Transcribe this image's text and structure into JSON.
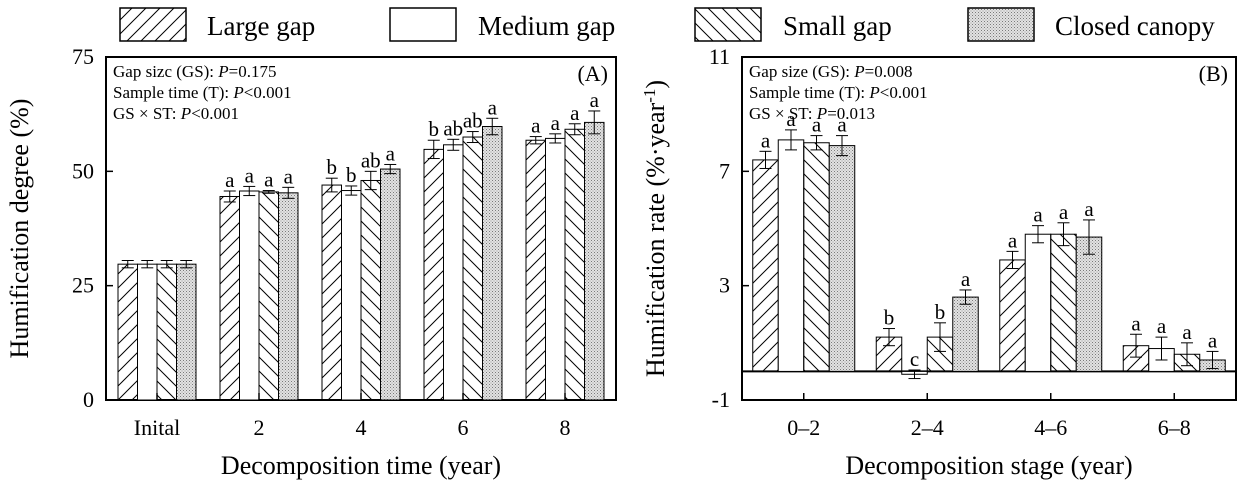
{
  "legend": [
    {
      "key": "large",
      "label": "Large gap",
      "pattern": "pat-fwd"
    },
    {
      "key": "medium",
      "label": "Medium gap",
      "pattern": "pat-blank"
    },
    {
      "key": "small",
      "label": "Small gap",
      "pattern": "pat-back"
    },
    {
      "key": "closed",
      "label": "Closed canopy",
      "pattern": "pat-dots"
    }
  ],
  "chart_data": [
    {
      "type": "bar",
      "panel": "(A)",
      "xlabel": "Decomposition time (year)",
      "ylabel": "Humification degree (%)",
      "categories": [
        "Inital",
        "2",
        "4",
        "6",
        "8"
      ],
      "ylim": [
        0,
        75
      ],
      "yticks": [
        0,
        25,
        50,
        75
      ],
      "stats": [
        {
          "prefix": "Gap sizc (GS): ",
          "p": "P",
          "suffix": "=0.175"
        },
        {
          "prefix": "Sample time (T): ",
          "p": "P",
          "suffix": "<0.001"
        },
        {
          "prefix": "GS × ST: ",
          "p": "P",
          "suffix": "<0.001"
        }
      ],
      "series": [
        {
          "name": "Large gap",
          "values": [
            29.7,
            44.5,
            47.0,
            54.8,
            56.8
          ],
          "errors": [
            0.8,
            1.2,
            1.5,
            2.0,
            0.8
          ],
          "letters": [
            "",
            "a",
            "b",
            "b",
            "a"
          ]
        },
        {
          "name": "Medium gap",
          "values": [
            29.7,
            45.7,
            45.8,
            55.8,
            57.2
          ],
          "errors": [
            0.8,
            1.0,
            1.0,
            1.2,
            1.0
          ],
          "letters": [
            "",
            "a",
            "b",
            "ab",
            "a"
          ]
        },
        {
          "name": "Small gap",
          "values": [
            29.7,
            45.5,
            48.0,
            57.5,
            59.2
          ],
          "errors": [
            0.8,
            0.3,
            2.0,
            1.2,
            1.2
          ],
          "letters": [
            "",
            "a",
            "ab",
            "ab",
            "a"
          ]
        },
        {
          "name": "Closed canopy",
          "values": [
            29.7,
            45.3,
            50.5,
            59.8,
            60.7
          ],
          "errors": [
            0.8,
            1.2,
            1.0,
            1.8,
            2.5
          ],
          "letters": [
            "",
            "a",
            "a",
            "a",
            "a"
          ]
        }
      ]
    },
    {
      "type": "bar",
      "panel": "(B)",
      "xlabel": "Decomposition stage (year)",
      "ylabel": "Humification rate (%·year",
      "ylabel_sup": "-1",
      "ylabel_close": ")",
      "categories": [
        "0–2",
        "2–4",
        "4–6",
        "6–8"
      ],
      "ylim": [
        -1,
        11
      ],
      "yticks": [
        -1,
        3,
        7,
        11
      ],
      "stats": [
        {
          "prefix": "Gap size (GS): ",
          "p": "P",
          "suffix": "=0.008"
        },
        {
          "prefix": "Sample time (T): ",
          "p": "P",
          "suffix": "<0.001"
        },
        {
          "prefix": "GS × ST: ",
          "p": "P",
          "suffix": "=0.013"
        }
      ],
      "series": [
        {
          "name": "Large gap",
          "values": [
            7.4,
            1.2,
            3.9,
            0.9
          ],
          "errors": [
            0.3,
            0.3,
            0.3,
            0.4
          ],
          "letters": [
            "a",
            "b",
            "a",
            "a"
          ]
        },
        {
          "name": "Medium gap",
          "values": [
            8.1,
            -0.1,
            4.8,
            0.8
          ],
          "errors": [
            0.35,
            0.15,
            0.3,
            0.4
          ],
          "letters": [
            "a",
            "c",
            "a",
            "a"
          ]
        },
        {
          "name": "Small gap",
          "values": [
            8.0,
            1.2,
            4.8,
            0.6
          ],
          "errors": [
            0.25,
            0.5,
            0.4,
            0.4
          ],
          "letters": [
            "a",
            "b",
            "a",
            "a"
          ]
        },
        {
          "name": "Closed canopy",
          "values": [
            7.9,
            2.6,
            4.7,
            0.4
          ],
          "errors": [
            0.35,
            0.25,
            0.6,
            0.3
          ],
          "letters": [
            "a",
            "a",
            "a",
            "a"
          ]
        }
      ]
    }
  ]
}
